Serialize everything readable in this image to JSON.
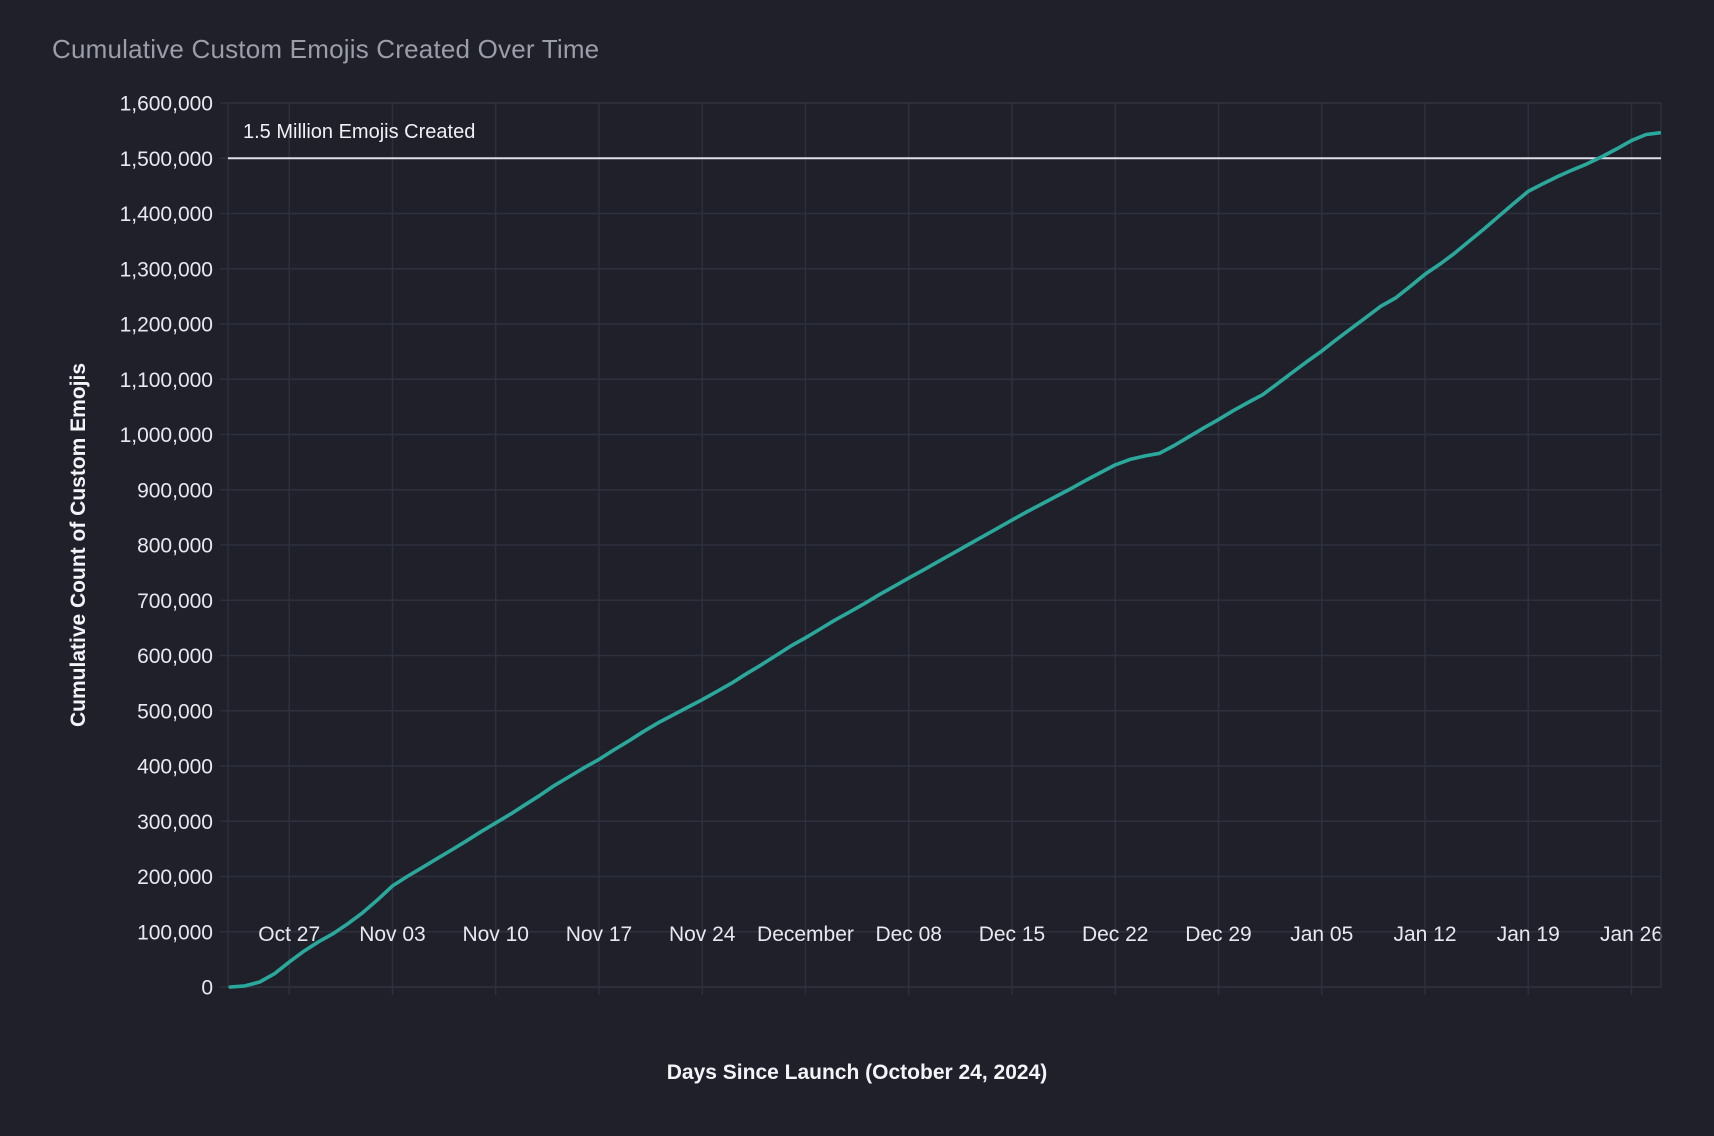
{
  "title": "Cumulative Custom Emojis Created Over Time",
  "colors": {
    "background": "#1f202a",
    "grid": "#2f303e",
    "line": "#2aa89b",
    "reference_line": "#dddee8",
    "tick_label": "#e8e9ef",
    "axis_title": "#f3f4f8",
    "chart_title": "#9b9da9"
  },
  "chart_data": {
    "type": "line",
    "title": "Cumulative Custom Emojis Created Over Time",
    "xlabel": "Days Since Launch (October 24, 2024)",
    "ylabel": "Cumulative Count of Custom Emojis",
    "xlim": [
      -1.15,
      96.0
    ],
    "ylim": [
      0,
      1600000
    ],
    "grid": true,
    "legend": false,
    "y_ticks": [
      0,
      100000,
      200000,
      300000,
      400000,
      500000,
      600000,
      700000,
      800000,
      900000,
      1000000,
      1100000,
      1200000,
      1300000,
      1400000,
      1500000,
      1600000
    ],
    "x_tick_days": [
      3,
      10,
      17,
      24,
      31,
      38,
      45,
      52,
      59,
      66,
      73,
      80,
      87,
      94
    ],
    "x_tick_labels": [
      "Oct 27",
      "Nov 03",
      "Nov 10",
      "Nov 17",
      "Nov 24",
      "December",
      "Dec 08",
      "Dec 15",
      "Dec 22",
      "Dec 29",
      "Jan 05",
      "Jan 12",
      "Jan 19",
      "Jan 26"
    ],
    "reference_line": {
      "y": 1500000,
      "label": "1.5 Million Emojis Created"
    },
    "series": [
      {
        "name": "Cumulative Custom Emojis",
        "x": [
          -1,
          0,
          1,
          2,
          3,
          4,
          5,
          6,
          7,
          8,
          9,
          10,
          11,
          12,
          13,
          14,
          15,
          16,
          17,
          18,
          19,
          20,
          21,
          22,
          23,
          24,
          25,
          26,
          27,
          28,
          29,
          30,
          31,
          32,
          33,
          34,
          35,
          36,
          37,
          38,
          39,
          40,
          41,
          42,
          43,
          44,
          45,
          46,
          47,
          48,
          49,
          50,
          51,
          52,
          53,
          54,
          55,
          56,
          57,
          58,
          59,
          60,
          61,
          62,
          63,
          64,
          65,
          66,
          67,
          68,
          69,
          70,
          71,
          72,
          73,
          74,
          75,
          76,
          77,
          78,
          79,
          80,
          81,
          82,
          83,
          84,
          85,
          86,
          87,
          88,
          89,
          90,
          91,
          92,
          93,
          94,
          95,
          95.9
        ],
        "y": [
          0,
          2000,
          9000,
          24000,
          45000,
          65000,
          82000,
          97000,
          115000,
          135000,
          158000,
          183000,
          200000,
          216000,
          232000,
          248000,
          264000,
          281000,
          297000,
          313000,
          330000,
          347000,
          365000,
          381000,
          397000,
          412000,
          429000,
          445000,
          462000,
          478000,
          492000,
          506000,
          520000,
          535000,
          550000,
          567000,
          583000,
          600000,
          617000,
          632000,
          648000,
          664000,
          679000,
          694000,
          710000,
          725000,
          740000,
          755000,
          770000,
          785000,
          800000,
          815000,
          830000,
          845000,
          860000,
          874000,
          888000,
          902000,
          917000,
          931000,
          945000,
          955000,
          961000,
          966000,
          980000,
          996000,
          1012000,
          1027000,
          1043000,
          1058000,
          1072000,
          1092000,
          1112000,
          1132000,
          1151000,
          1172000,
          1192000,
          1212000,
          1232000,
          1247000,
          1268000,
          1290000,
          1308000,
          1328000,
          1350000,
          1372000,
          1395000,
          1418000,
          1440000,
          1454000,
          1467000,
          1479000,
          1490000,
          1503000,
          1517000,
          1532000,
          1543000,
          1546000
        ]
      }
    ]
  }
}
